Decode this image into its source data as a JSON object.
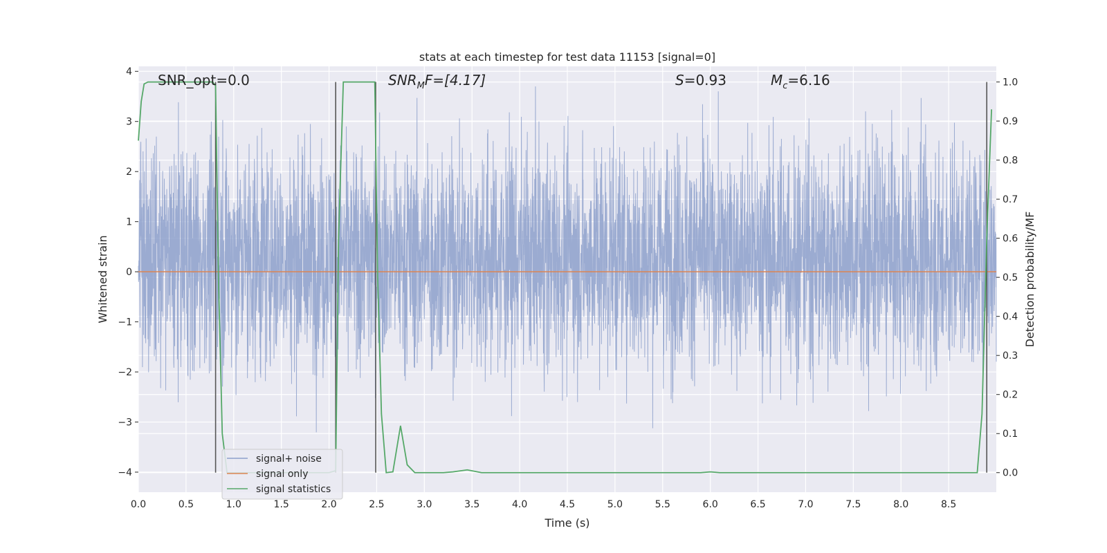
{
  "chart_data": {
    "type": "line",
    "title": "stats at each timestep for test data 11153 [signal=0]",
    "xlabel": "Time (s)",
    "ylabel": "Whitened strain",
    "y2label": "Detection probability/MF",
    "xlim": [
      0.0,
      9.0
    ],
    "ylim": [
      -4.4,
      4.1
    ],
    "y2lim": [
      -0.05,
      1.04
    ],
    "x_ticks": [
      "0.0",
      "0.5",
      "1.0",
      "1.5",
      "2.0",
      "2.5",
      "3.0",
      "3.5",
      "4.0",
      "4.5",
      "5.0",
      "5.5",
      "6.0",
      "6.5",
      "7.0",
      "7.5",
      "8.0",
      "8.5"
    ],
    "y_ticks": [
      "−4",
      "−3",
      "−2",
      "−1",
      "0",
      "1",
      "2",
      "3",
      "4"
    ],
    "y2_ticks": [
      "0.0",
      "0.1",
      "0.2",
      "0.3",
      "0.4",
      "0.5",
      "0.6",
      "0.7",
      "0.8",
      "0.9",
      "1.0"
    ],
    "grid": true,
    "legend_position": "lower-left",
    "annotations": {
      "snr_opt": "SNR_opt=0.0",
      "snr_mf_name": "SNR",
      "snr_mf_sub": "M",
      "snr_mf_tail": "F=[4.17]",
      "s_name": "S",
      "s_value": "=0.93",
      "mc_name": "M",
      "mc_sub": "c",
      "mc_value": "=6.16"
    },
    "series": [
      {
        "name": "signal+ noise",
        "color": "#8da0cb",
        "axis": "left",
        "description_kind": "noise",
        "envelope_typical": [
          -1.6,
          2.2
        ],
        "envelope_extreme": [
          -4.0,
          3.7
        ]
      },
      {
        "name": "signal only",
        "color": "#dd8452",
        "axis": "left",
        "x": [
          0.0,
          9.0
        ],
        "y": [
          0.0,
          0.0
        ]
      },
      {
        "name": "signal statistics",
        "color": "#55a868",
        "axis": "right",
        "x": [
          0.0,
          0.03,
          0.06,
          0.1,
          0.2,
          0.3,
          0.4,
          0.5,
          0.6,
          0.7,
          0.78,
          0.81,
          0.84,
          0.88,
          0.93,
          1.0,
          1.5,
          1.8,
          1.9,
          2.0,
          2.07,
          2.1,
          2.15,
          2.2,
          2.3,
          2.4,
          2.48,
          2.51,
          2.55,
          2.6,
          2.67,
          2.75,
          2.82,
          2.9,
          3.2,
          3.3,
          3.45,
          3.6,
          4.0,
          5.0,
          5.9,
          6.0,
          6.1,
          7.0,
          8.0,
          8.8,
          8.85,
          8.9,
          8.95
        ],
        "y": [
          0.85,
          0.95,
          0.995,
          1.0,
          1.0,
          1.0,
          1.0,
          1.0,
          1.0,
          1.0,
          1.0,
          0.99,
          0.5,
          0.1,
          0.0,
          0.0,
          0.0,
          0.0,
          0.0,
          0.0,
          0.005,
          0.6,
          1.0,
          1.0,
          1.0,
          1.0,
          1.0,
          0.5,
          0.15,
          0.0,
          0.002,
          0.12,
          0.02,
          0.0,
          0.0,
          0.002,
          0.007,
          0.0,
          0.0,
          0.0,
          0.0,
          0.002,
          0.0,
          0.0,
          0.0,
          0.0,
          0.15,
          0.6,
          0.93
        ]
      }
    ],
    "vertical_markers": {
      "color": "#555555",
      "positions": [
        {
          "x": 0.81,
          "y2_range": [
            0.0,
            1.0
          ]
        },
        {
          "x": 2.07,
          "y2_range": [
            0.0,
            1.0
          ]
        },
        {
          "x": 2.49,
          "y2_range": [
            0.0,
            1.0
          ]
        },
        {
          "x": 8.9,
          "y2_range": [
            0.0,
            1.0
          ]
        }
      ]
    }
  },
  "colors": {
    "plot_bg": "#eaeaf2",
    "grid": "#ffffff",
    "text": "#262626"
  }
}
